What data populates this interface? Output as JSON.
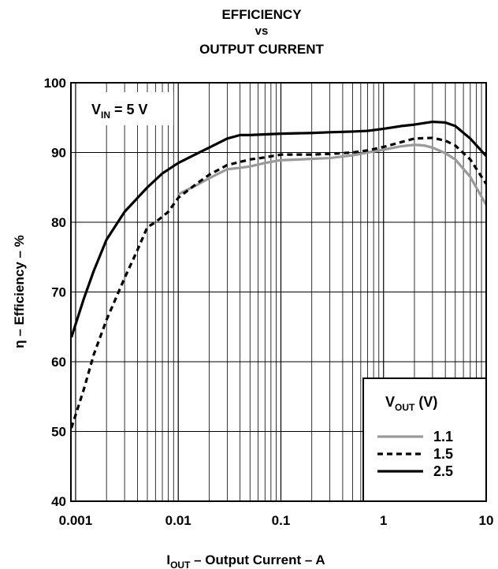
{
  "chart_data": {
    "type": "line",
    "title": {
      "line1": "EFFICIENCY",
      "line2": "vs",
      "line3": "OUTPUT CURRENT"
    },
    "xlabel": {
      "main": "I",
      "sub": "OUT",
      "rest": " – Output Current – A"
    },
    "ylabel": "η – Efficiency – %",
    "xscale": "log",
    "xlim": [
      0.0009,
      10
    ],
    "ylim": [
      40,
      100
    ],
    "xticks": [
      "0.001",
      "0.01",
      "0.1",
      "1",
      "10"
    ],
    "yticks": [
      "40",
      "50",
      "60",
      "70",
      "80",
      "90",
      "100"
    ],
    "grid": true,
    "annotation": {
      "main": "V",
      "sub": "IN",
      "rest": " = 5 V"
    },
    "legend": {
      "position": "bottom-right",
      "title": {
        "main": "V",
        "sub": "OUT",
        "rest": " (V)"
      }
    },
    "series": [
      {
        "name": "1.1",
        "color": "#9a9a9a",
        "dash": "solid",
        "points": [
          [
            0.01,
            84.0
          ],
          [
            0.015,
            85.3
          ],
          [
            0.02,
            86.3
          ],
          [
            0.03,
            87.6
          ],
          [
            0.04,
            87.8
          ],
          [
            0.05,
            88.0
          ],
          [
            0.07,
            88.5
          ],
          [
            0.1,
            88.9
          ],
          [
            0.15,
            89.0
          ],
          [
            0.2,
            89.1
          ],
          [
            0.3,
            89.2
          ],
          [
            0.5,
            89.6
          ],
          [
            0.7,
            90.0
          ],
          [
            1.0,
            90.4
          ],
          [
            1.5,
            90.9
          ],
          [
            2.0,
            91.1
          ],
          [
            2.5,
            91.0
          ],
          [
            3.0,
            90.7
          ],
          [
            4.0,
            89.9
          ],
          [
            5.0,
            89.0
          ],
          [
            7.0,
            86.5
          ],
          [
            10.0,
            82.5
          ]
        ]
      },
      {
        "name": "1.5",
        "color": "#000000",
        "dash": "dashed",
        "points": [
          [
            0.00091,
            50.5
          ],
          [
            0.0012,
            56.0
          ],
          [
            0.0015,
            61.0
          ],
          [
            0.002,
            66.0
          ],
          [
            0.003,
            72.0
          ],
          [
            0.004,
            76.0
          ],
          [
            0.005,
            79.3
          ],
          [
            0.006,
            80.0
          ],
          [
            0.008,
            81.5
          ],
          [
            0.01,
            83.5
          ],
          [
            0.015,
            85.5
          ],
          [
            0.02,
            86.8
          ],
          [
            0.03,
            88.2
          ],
          [
            0.05,
            89.0
          ],
          [
            0.07,
            89.3
          ],
          [
            0.1,
            89.7
          ],
          [
            0.2,
            89.7
          ],
          [
            0.3,
            89.8
          ],
          [
            0.5,
            90.0
          ],
          [
            0.7,
            90.3
          ],
          [
            1.0,
            90.8
          ],
          [
            1.5,
            91.5
          ],
          [
            2.0,
            92.0
          ],
          [
            3.0,
            92.1
          ],
          [
            4.0,
            91.7
          ],
          [
            5.0,
            91.0
          ],
          [
            7.0,
            89.0
          ],
          [
            10.0,
            85.5
          ]
        ]
      },
      {
        "name": "2.5",
        "color": "#000000",
        "dash": "solid",
        "points": [
          [
            0.00091,
            63.5
          ],
          [
            0.0012,
            69.0
          ],
          [
            0.0015,
            73.0
          ],
          [
            0.002,
            77.5
          ],
          [
            0.003,
            81.5
          ],
          [
            0.005,
            85.0
          ],
          [
            0.007,
            87.0
          ],
          [
            0.01,
            88.5
          ],
          [
            0.015,
            89.8
          ],
          [
            0.02,
            90.7
          ],
          [
            0.03,
            92.0
          ],
          [
            0.04,
            92.5
          ],
          [
            0.05,
            92.5
          ],
          [
            0.07,
            92.6
          ],
          [
            0.1,
            92.7
          ],
          [
            0.2,
            92.8
          ],
          [
            0.3,
            92.9
          ],
          [
            0.5,
            93.0
          ],
          [
            0.7,
            93.1
          ],
          [
            1.0,
            93.4
          ],
          [
            1.5,
            93.8
          ],
          [
            2.0,
            94.0
          ],
          [
            3.0,
            94.4
          ],
          [
            4.0,
            94.3
          ],
          [
            5.0,
            93.8
          ],
          [
            7.0,
            92.0
          ],
          [
            10.0,
            89.5
          ]
        ]
      }
    ]
  }
}
